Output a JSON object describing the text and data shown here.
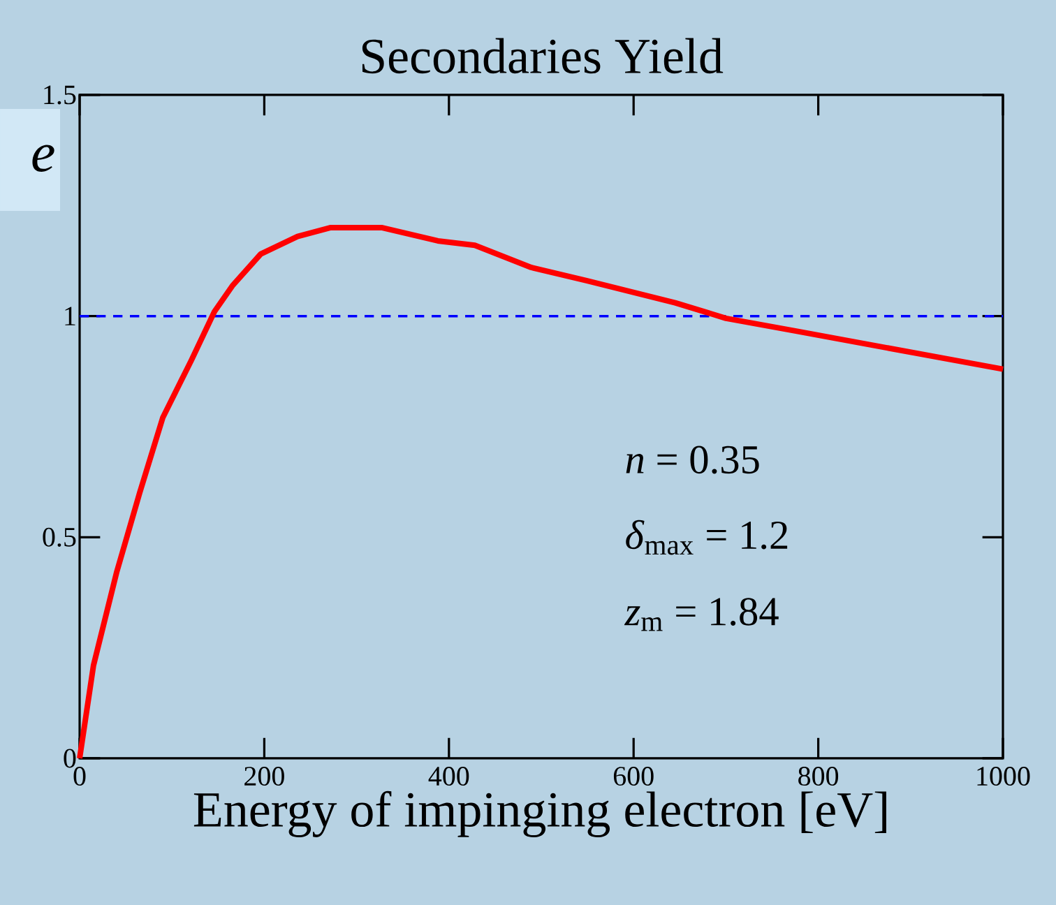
{
  "chart_data": {
    "type": "line",
    "title": "Secondaries Yield",
    "xlabel": "Energy of impinging electron [eV]",
    "xlim": [
      0,
      1000
    ],
    "ylim": [
      0,
      1.5
    ],
    "xticks": [
      0,
      200,
      400,
      600,
      800,
      1000
    ],
    "yticks": [
      0,
      0.5,
      1,
      1.5
    ],
    "series": [
      {
        "color": "#ff0000",
        "x": [
          0,
          15,
          40,
          65,
          90,
          121,
          146,
          166,
          196,
          236,
          272,
          327,
          388,
          428,
          489,
          549,
          645,
          700,
          776,
          1000
        ],
        "values": [
          0,
          0.21,
          0.42,
          0.6,
          0.77,
          0.9,
          1.01,
          1.07,
          1.14,
          1.18,
          1.2,
          1.2,
          1.17,
          1.16,
          1.11,
          1.08,
          1.03,
          0.995,
          0.966,
          0.88
        ]
      }
    ],
    "ref_lines": [
      {
        "axis": "y",
        "value": 1,
        "color": "#0000ff",
        "line_style": "dashed"
      }
    ],
    "annotations": [
      "*e*",
      "*n* = 0.35",
      "*δ*$_{max}$ = 1.2",
      "*z*$_{m}$ = 1.84"
    ],
    "marker": "none",
    "line_style": "solid"
  }
}
